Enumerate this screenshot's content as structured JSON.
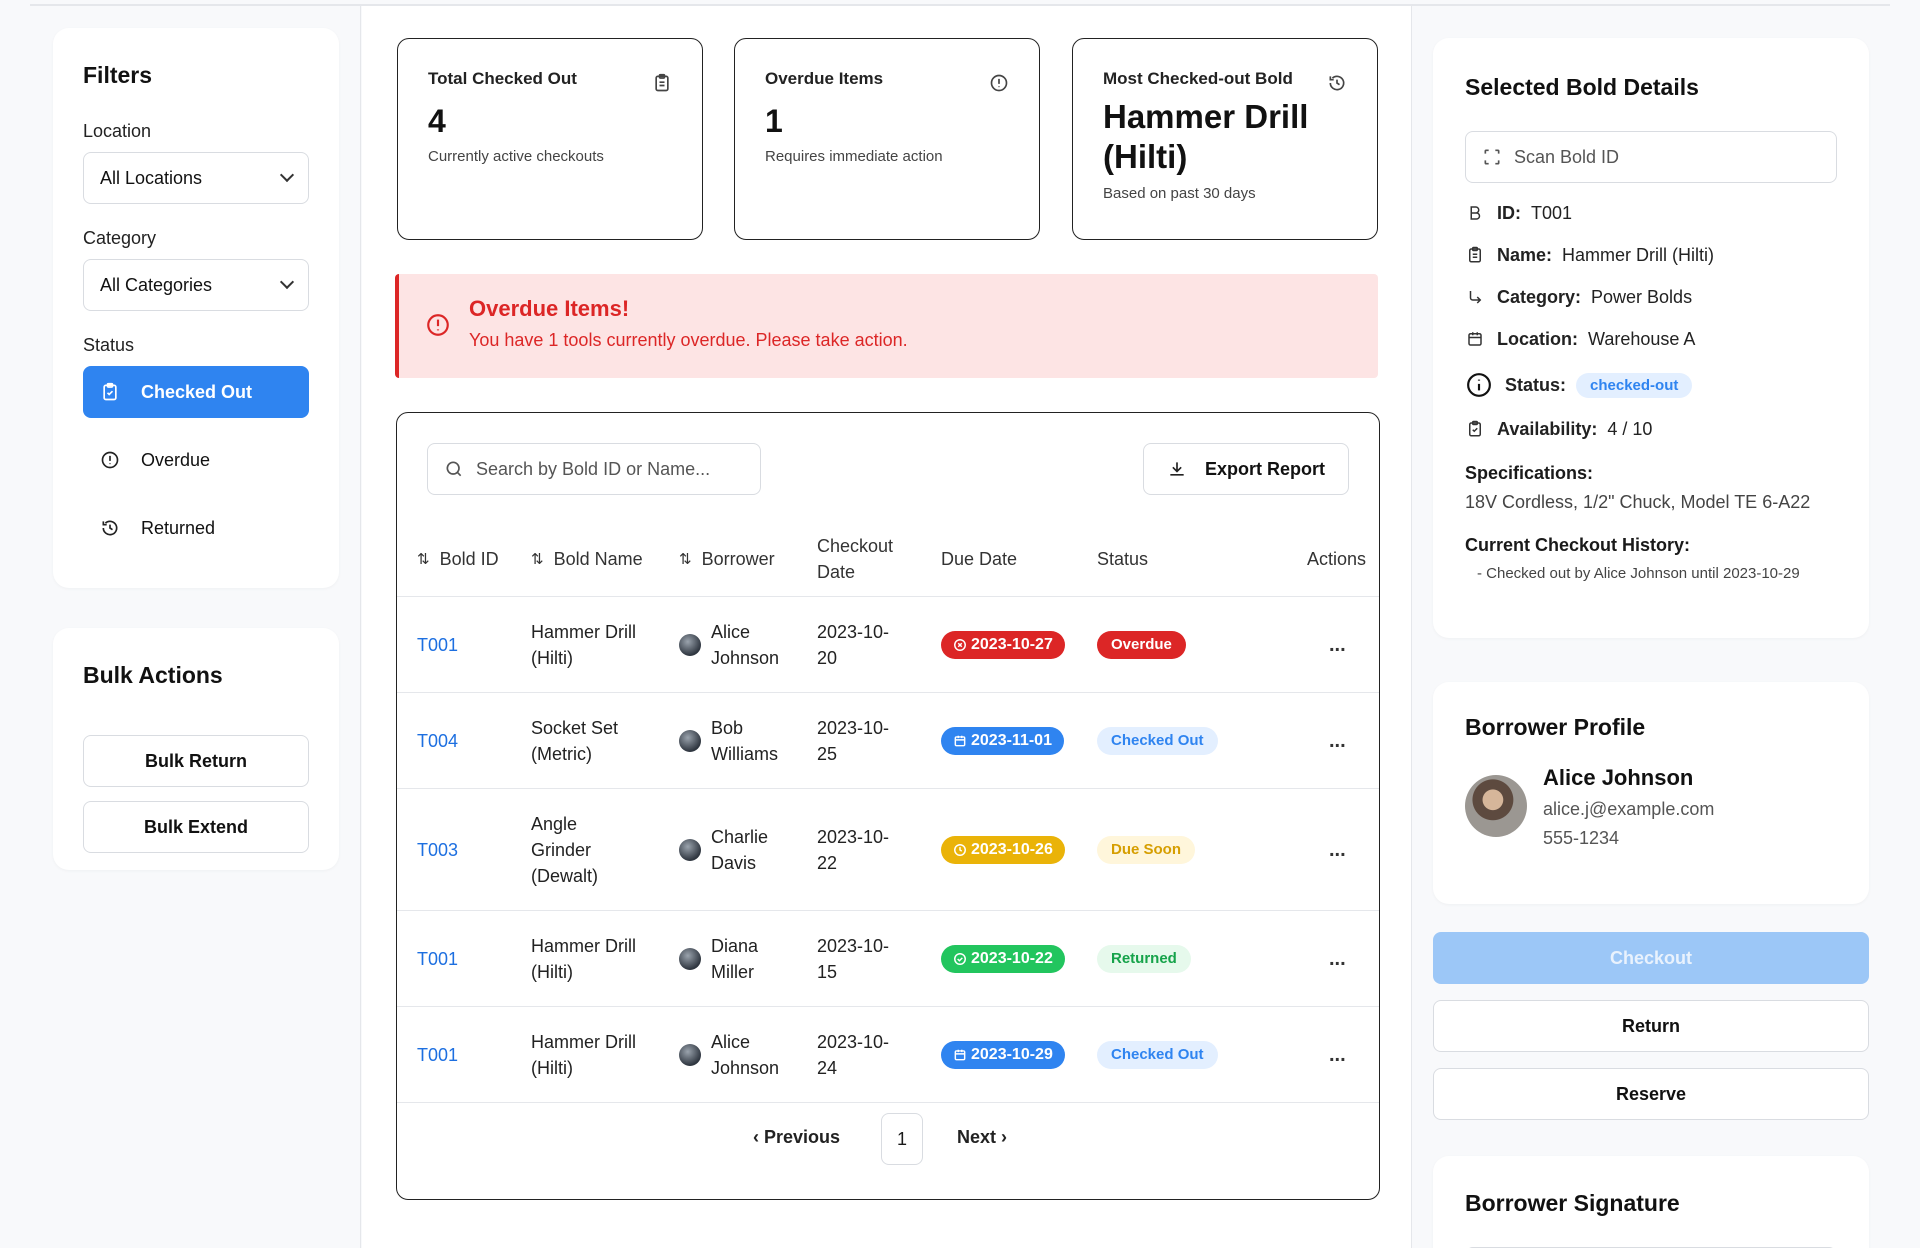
{
  "filters": {
    "title": "Filters",
    "location_label": "Location",
    "location_value": "All Locations",
    "category_label": "Category",
    "category_value": "All Categories",
    "status_label": "Status",
    "status_items": [
      {
        "label": "Checked Out",
        "icon": "clipboard-icon",
        "active": true
      },
      {
        "label": "Overdue",
        "icon": "alert-circle-icon",
        "active": false
      },
      {
        "label": "Returned",
        "icon": "history-icon",
        "active": false
      }
    ]
  },
  "bulk": {
    "title": "Bulk Actions",
    "return_label": "Bulk Return",
    "extend_label": "Bulk Extend"
  },
  "stats": [
    {
      "title": "Total Checked Out",
      "value": "4",
      "sub": "Currently active checkouts",
      "icon": "clipboard-icon"
    },
    {
      "title": "Overdue Items",
      "value": "1",
      "sub": "Requires immediate action",
      "icon": "alert-circle-icon"
    },
    {
      "title": "Most Checked-out Bold",
      "value": "Hammer Drill (Hilti)",
      "sub": "Based on past 30 days",
      "icon": "history-icon"
    }
  ],
  "alert": {
    "title": "Overdue Items!",
    "message": "You have 1 tools currently overdue. Please take action."
  },
  "table": {
    "search_placeholder": "Search by Bold ID or Name...",
    "export_label": "Export Report",
    "headers": {
      "id": "Bold ID",
      "name": "Bold Name",
      "borrower": "Borrower",
      "checkout": "Checkout Date",
      "due": "Due Date",
      "status": "Status",
      "actions": "Actions"
    },
    "rows": [
      {
        "id": "T001",
        "name": "Hammer Drill (Hilti)",
        "borrower": "Alice Johnson",
        "checkout": "2023-10-20",
        "due": "2023-10-27",
        "status": "Overdue",
        "actions": "..."
      },
      {
        "id": "T004",
        "name": "Socket Set (Metric)",
        "borrower": "Bob Williams",
        "checkout": "2023-10-25",
        "due": "2023-11-01",
        "status": "Checked Out",
        "actions": "..."
      },
      {
        "id": "T003",
        "name": "Angle Grinder (Dewalt)",
        "borrower": "Charlie Davis",
        "checkout": "2023-10-22",
        "due": "2023-10-26",
        "status": "Due Soon",
        "actions": "..."
      },
      {
        "id": "T001",
        "name": "Hammer Drill (Hilti)",
        "borrower": "Diana Miller",
        "checkout": "2023-10-15",
        "due": "2023-10-22",
        "status": "Returned",
        "actions": "..."
      },
      {
        "id": "T001",
        "name": "Hammer Drill (Hilti)",
        "borrower": "Alice Johnson",
        "checkout": "2023-10-24",
        "due": "2023-10-29",
        "status": "Checked Out",
        "actions": "..."
      }
    ],
    "pagination": {
      "prev": "Previous",
      "page": "1",
      "next": "Next"
    }
  },
  "details": {
    "title": "Selected Bold Details",
    "scan_placeholder": "Scan Bold ID",
    "id_label": "ID:",
    "id_value": "T001",
    "name_label": "Name:",
    "name_value": "Hammer Drill (Hilti)",
    "category_label": "Category:",
    "category_value": "Power Bolds",
    "location_label": "Location:",
    "location_value": "Warehouse A",
    "status_label": "Status:",
    "status_value": "checked-out",
    "availability_label": "Availability:",
    "availability_value": "4 / 10",
    "specs_label": "Specifications:",
    "specs_value": "18V Cordless, 1/2\" Chuck, Model TE 6-A22",
    "history_label": "Current Checkout History:",
    "history_value": "- Checked out by Alice Johnson until 2023-10-29"
  },
  "profile": {
    "title": "Borrower Profile",
    "name": "Alice Johnson",
    "email": "alice.j@example.com",
    "phone": "555-1234"
  },
  "actions": {
    "checkout": "Checkout",
    "return": "Return",
    "reserve": "Reserve"
  },
  "signature": {
    "title": "Borrower Signature"
  },
  "colors": {
    "accent": "#2f84f0",
    "danger": "#dc2626",
    "overdue_due": "#dc2626",
    "checked_out_due": "#2f84f0",
    "due_soon_due": "#eab308",
    "returned_due": "#22c55e"
  }
}
